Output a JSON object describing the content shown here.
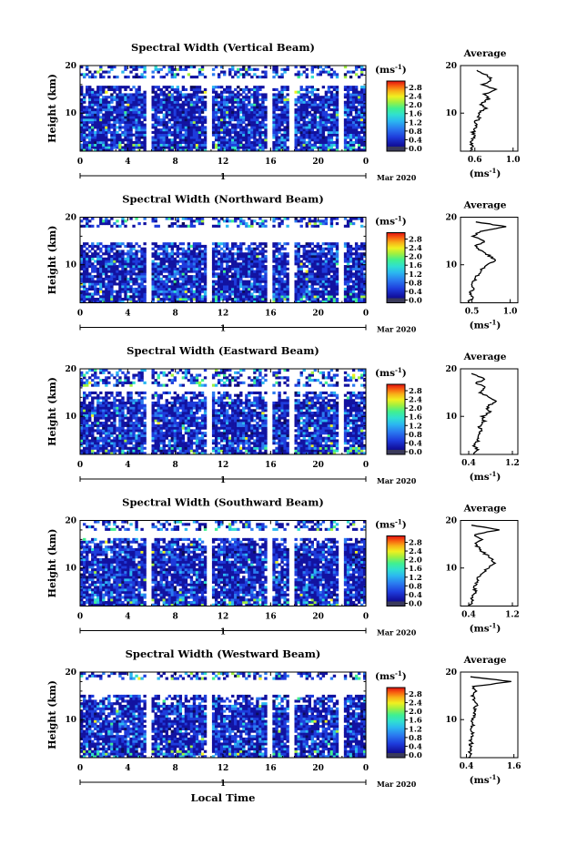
{
  "figure": {
    "date_label": "Mar 2020",
    "xlabel": "Local Time",
    "day_label": "1",
    "colorbar_unit": "(ms",
    "colorbar_unit_exp": "-1",
    "colorbar_unit_close": ")",
    "colorbar_ticks": [
      "2.8",
      "2.4",
      "2.0",
      "1.6",
      "1.2",
      "0.8",
      "0.4",
      "0.0"
    ],
    "colorbar_range": [
      0.0,
      2.8
    ],
    "colors": [
      "#0c0c5a",
      "#1212a0",
      "#1e3cdc",
      "#2a7af0",
      "#2bb8f0",
      "#30e0d0",
      "#40f090",
      "#a0f040",
      "#f0f020",
      "#f8b018",
      "#f86010",
      "#e01010"
    ],
    "avg_title": "Average",
    "avg_unit": "(ms",
    "avg_unit_exp": "-1",
    "avg_unit_close": ")",
    "gap_hours": [
      5.8,
      10.9,
      16.0,
      17.7,
      21.9
    ]
  },
  "chart_data": [
    {
      "type": "heatmap",
      "title": "Spectral Width (Vertical Beam)",
      "ylabel": "Height (km)",
      "x_ticks": [
        "0",
        "4",
        "8",
        "12",
        "16",
        "20",
        "0"
      ],
      "xlim": [
        0,
        24
      ],
      "y_ticks": [
        "20",
        "10"
      ],
      "ylim": [
        2,
        20
      ],
      "top_gap": [
        16.0,
        17.2
      ],
      "avg_xticks": [
        "0.6",
        "1.0"
      ],
      "avg_xlim": [
        0.45,
        1.05
      ],
      "profile": {
        "height": [
          2,
          3,
          4,
          5,
          6,
          7,
          8,
          9,
          10,
          11,
          12,
          13,
          14,
          15,
          16,
          17,
          18,
          19
        ],
        "value": [
          0.55,
          0.58,
          0.55,
          0.6,
          0.58,
          0.62,
          0.6,
          0.65,
          0.63,
          0.72,
          0.66,
          0.75,
          0.7,
          0.82,
          0.68,
          0.78,
          0.72,
          0.62
        ]
      }
    },
    {
      "type": "heatmap",
      "title": "Spectral Width (Northward Beam)",
      "ylabel": "Height (km)",
      "x_ticks": [
        "0",
        "4",
        "8",
        "12",
        "16",
        "20",
        "0"
      ],
      "xlim": [
        0,
        24
      ],
      "y_ticks": [
        "20",
        "10"
      ],
      "ylim": [
        2,
        20
      ],
      "top_gap": [
        14.5,
        17.8
      ],
      "avg_xticks": [
        "0.5",
        "1.0"
      ],
      "avg_xlim": [
        0.35,
        1.1
      ],
      "profile": {
        "height": [
          2,
          3,
          4,
          5,
          6,
          7,
          8,
          9,
          10,
          11,
          12,
          13,
          14,
          15,
          16,
          17,
          18,
          19
        ],
        "value": [
          0.45,
          0.5,
          0.48,
          0.52,
          0.5,
          0.55,
          0.58,
          0.62,
          0.7,
          0.8,
          0.72,
          0.62,
          0.55,
          0.68,
          0.52,
          0.6,
          0.95,
          0.55
        ]
      }
    },
    {
      "type": "heatmap",
      "title": "Spectral Width (Eastward Beam)",
      "ylabel": "Height (km)",
      "x_ticks": [
        "0",
        "4",
        "8",
        "12",
        "16",
        "20",
        "0"
      ],
      "xlim": [
        0,
        24
      ],
      "y_ticks": [
        "20",
        "10"
      ],
      "ylim": [
        2,
        20
      ],
      "top_gap": [
        15.0,
        16.5
      ],
      "avg_xticks": [
        "0.4",
        "1.2"
      ],
      "avg_xlim": [
        0.25,
        1.3
      ],
      "profile": {
        "height": [
          2,
          3,
          4,
          5,
          6,
          7,
          8,
          9,
          10,
          11,
          12,
          13,
          14,
          15,
          16,
          17,
          18,
          19
        ],
        "value": [
          0.5,
          0.55,
          0.5,
          0.58,
          0.55,
          0.62,
          0.6,
          0.68,
          0.65,
          0.8,
          0.72,
          0.9,
          0.78,
          0.6,
          0.72,
          0.55,
          0.7,
          0.45
        ]
      }
    },
    {
      "type": "heatmap",
      "title": "Spectral Width (Southward Beam)",
      "ylabel": "Height (km)",
      "x_ticks": [
        "0",
        "4",
        "8",
        "12",
        "16",
        "20",
        "0"
      ],
      "xlim": [
        0,
        24
      ],
      "y_ticks": [
        "20",
        "10"
      ],
      "ylim": [
        2,
        20
      ],
      "top_gap": [
        16.5,
        18.0
      ],
      "avg_xticks": [
        "0.4",
        "1.2"
      ],
      "avg_xlim": [
        0.25,
        1.3
      ],
      "profile": {
        "height": [
          2,
          3,
          4,
          5,
          6,
          7,
          8,
          9,
          10,
          11,
          12,
          13,
          14,
          15,
          16,
          17,
          18,
          19
        ],
        "value": [
          0.42,
          0.48,
          0.45,
          0.52,
          0.5,
          0.56,
          0.58,
          0.66,
          0.75,
          0.88,
          0.8,
          0.7,
          0.6,
          0.52,
          0.62,
          0.5,
          0.95,
          0.45
        ]
      }
    },
    {
      "type": "heatmap",
      "title": "Spectral Width (Westward Beam)",
      "ylabel": "Height (km)",
      "x_ticks": [
        "0",
        "4",
        "8",
        "12",
        "16",
        "20",
        "0"
      ],
      "xlim": [
        0,
        24
      ],
      "y_ticks": [
        "20",
        "10"
      ],
      "ylim": [
        2,
        20
      ],
      "top_gap": [
        15.0,
        18.5
      ],
      "avg_xticks": [
        "0.4",
        "1.6"
      ],
      "avg_xlim": [
        0.25,
        1.7
      ],
      "profile": {
        "height": [
          2,
          3,
          4,
          5,
          6,
          7,
          8,
          9,
          10,
          11,
          12,
          13,
          14,
          15,
          16,
          17,
          18,
          19
        ],
        "value": [
          0.45,
          0.5,
          0.48,
          0.52,
          0.5,
          0.55,
          0.52,
          0.58,
          0.56,
          0.62,
          0.58,
          0.66,
          0.6,
          0.55,
          0.62,
          0.58,
          1.55,
          0.5
        ]
      }
    }
  ]
}
